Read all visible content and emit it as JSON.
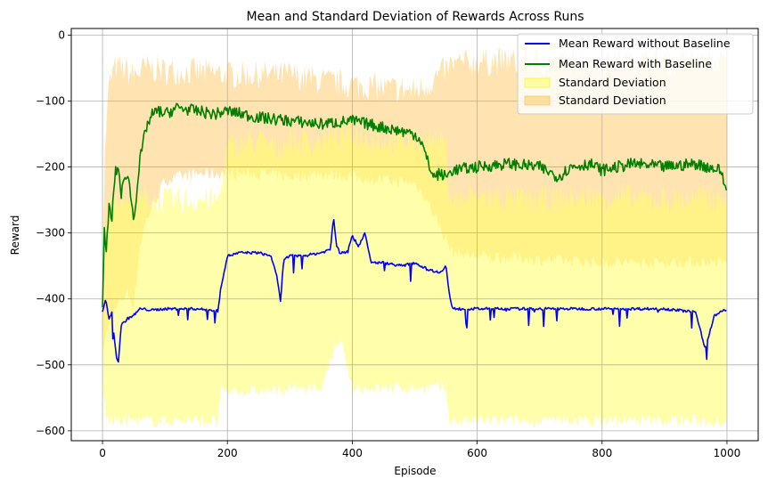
{
  "chart_data": {
    "type": "line",
    "title": "Mean and Standard Deviation of Rewards Across Runs",
    "xlabel": "Episode",
    "ylabel": "Reward",
    "xlim": [
      -50,
      1050
    ],
    "ylim": [
      -615,
      10
    ],
    "xticks": [
      0,
      200,
      400,
      600,
      800,
      1000
    ],
    "yticks": [
      0,
      -100,
      -200,
      -300,
      -400,
      -500,
      -600
    ],
    "xtick_labels": [
      "0",
      "200",
      "400",
      "600",
      "800",
      "1000"
    ],
    "ytick_labels": [
      "0",
      "−100",
      "−200",
      "−300",
      "−400",
      "−500",
      "−600"
    ],
    "grid": true,
    "legend_position": "top-right",
    "series": [
      {
        "name": "Mean Reward without Baseline",
        "kind": "line",
        "color": "#0000ff",
        "x": [
          0,
          5,
          10,
          15,
          20,
          25,
          30,
          40,
          50,
          60,
          80,
          100,
          150,
          185,
          190,
          200,
          220,
          250,
          270,
          280,
          285,
          290,
          300,
          320,
          350,
          365,
          370,
          375,
          380,
          390,
          400,
          410,
          420,
          430,
          450,
          480,
          500,
          520,
          540,
          550,
          555,
          560,
          600,
          650,
          700,
          750,
          800,
          850,
          900,
          950,
          965,
          980,
          1000
        ],
        "y": [
          -420,
          -400,
          -430,
          -420,
          -470,
          -500,
          -440,
          -430,
          -425,
          -415,
          -417,
          -415,
          -415,
          -418,
          -380,
          -335,
          -330,
          -330,
          -335,
          -370,
          -405,
          -340,
          -335,
          -335,
          -330,
          -325,
          -275,
          -320,
          -330,
          -330,
          -305,
          -320,
          -300,
          -345,
          -345,
          -350,
          -345,
          -355,
          -360,
          -350,
          -390,
          -415,
          -415,
          -415,
          -415,
          -415,
          -415,
          -415,
          -415,
          -420,
          -475,
          -425,
          -415
        ]
      },
      {
        "name": "Mean Reward with Baseline",
        "kind": "line",
        "color": "#008000",
        "x": [
          0,
          3,
          6,
          10,
          15,
          20,
          25,
          30,
          40,
          50,
          60,
          70,
          80,
          90,
          100,
          120,
          150,
          180,
          200,
          250,
          300,
          350,
          400,
          450,
          500,
          510,
          520,
          530,
          540,
          550,
          560,
          600,
          650,
          700,
          730,
          750,
          780,
          800,
          850,
          900,
          950,
          990,
          1000
        ],
        "y": [
          -420,
          -300,
          -330,
          -260,
          -280,
          -210,
          -200,
          -240,
          -205,
          -280,
          -190,
          -140,
          -120,
          -115,
          -120,
          -110,
          -115,
          -120,
          -115,
          -125,
          -130,
          -135,
          -130,
          -140,
          -150,
          -160,
          -190,
          -215,
          -210,
          -215,
          -205,
          -200,
          -195,
          -200,
          -215,
          -200,
          -195,
          -205,
          -195,
          -200,
          -195,
          -205,
          -240
        ]
      },
      {
        "name": "Standard Deviation",
        "kind": "band",
        "color": "#ffff66",
        "x": [
          0,
          5,
          10,
          20,
          40,
          50,
          60,
          80,
          100,
          150,
          185,
          190,
          200,
          250,
          280,
          300,
          350,
          380,
          400,
          450,
          500,
          540,
          550,
          555,
          560,
          600,
          700,
          800,
          900,
          1000
        ],
        "upper": [
          -450,
          -300,
          -260,
          -240,
          -250,
          -260,
          -250,
          -250,
          -250,
          -250,
          -250,
          -230,
          -170,
          -160,
          -170,
          -160,
          -160,
          -150,
          -150,
          -160,
          -160,
          -160,
          -165,
          -240,
          -250,
          -245,
          -250,
          -245,
          -250,
          -245
        ],
        "lower": [
          -520,
          -580,
          -585,
          -585,
          -585,
          -585,
          -585,
          -585,
          -585,
          -585,
          -585,
          -540,
          -540,
          -540,
          -540,
          -535,
          -535,
          -460,
          -535,
          -535,
          -535,
          -535,
          -535,
          -585,
          -585,
          -585,
          -585,
          -585,
          -585,
          -585
        ]
      },
      {
        "name": "Standard Deviation",
        "kind": "band",
        "color": "#ffd27f",
        "x": [
          0,
          5,
          10,
          15,
          20,
          30,
          40,
          50,
          60,
          70,
          80,
          100,
          150,
          200,
          250,
          300,
          350,
          400,
          450,
          500,
          520,
          540,
          560,
          600,
          700,
          800,
          900,
          1000
        ],
        "upper": [
          -330,
          -150,
          -80,
          -60,
          -50,
          -50,
          -55,
          -60,
          -55,
          -50,
          -50,
          -55,
          -55,
          -60,
          -60,
          -60,
          -70,
          -75,
          -80,
          -85,
          -75,
          -60,
          -45,
          -40,
          -40,
          -40,
          -40,
          -40
        ],
        "lower": [
          -480,
          -460,
          -440,
          -430,
          -420,
          -400,
          -390,
          -410,
          -320,
          -280,
          -260,
          -220,
          -210,
          -210,
          -210,
          -215,
          -210,
          -215,
          -220,
          -225,
          -250,
          -290,
          -330,
          -335,
          -340,
          -345,
          -345,
          -345
        ]
      }
    ]
  }
}
